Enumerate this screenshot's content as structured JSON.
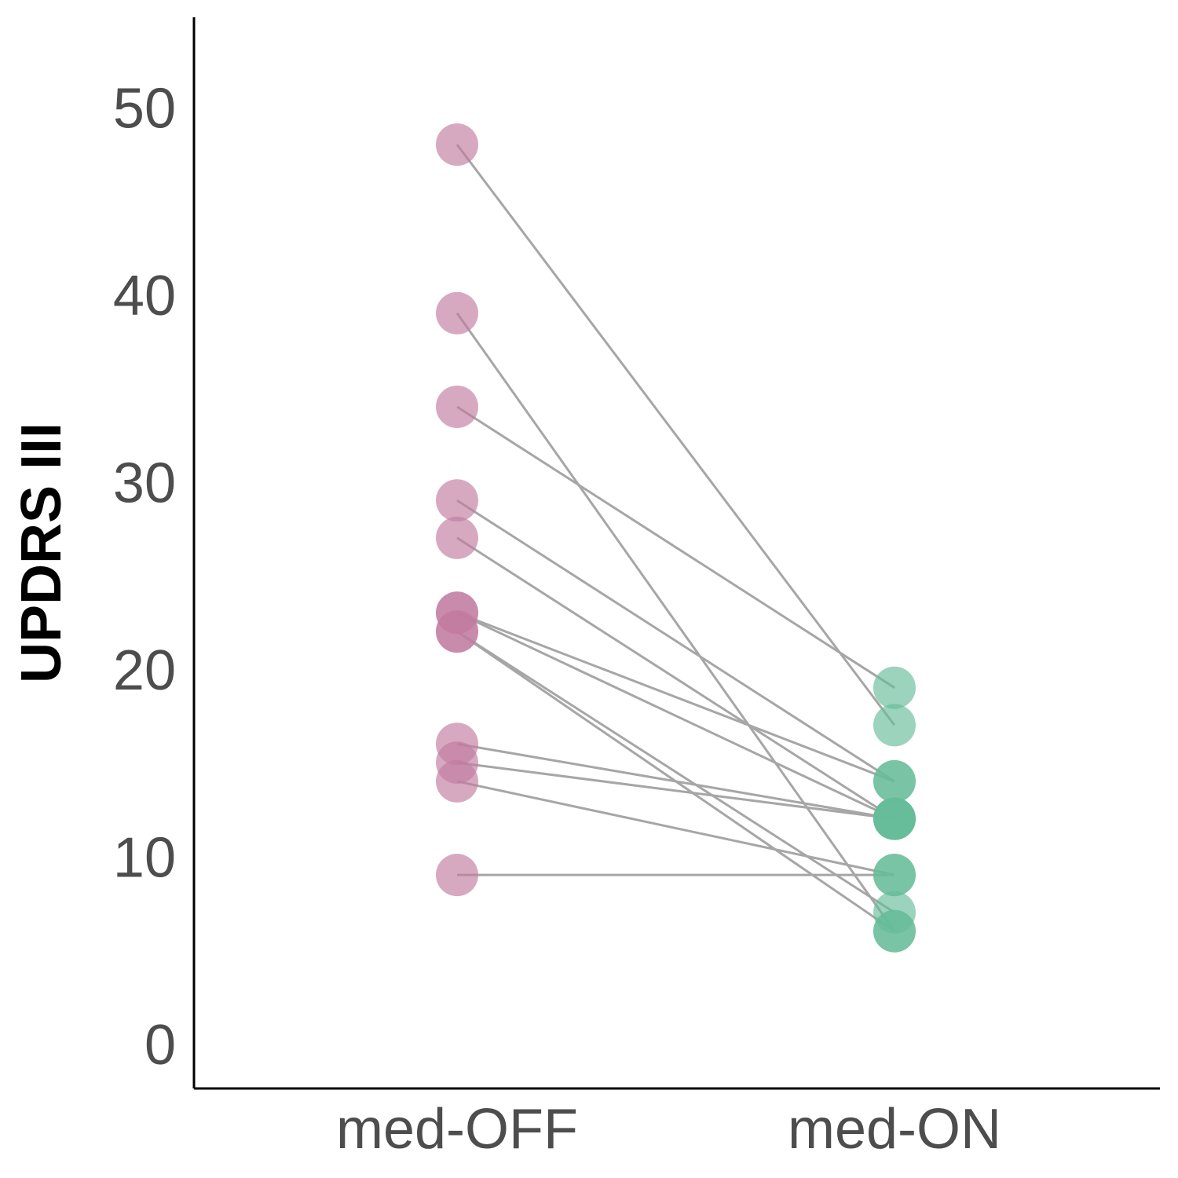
{
  "chart_data": {
    "type": "scatter",
    "subtype": "paired-dot-plot",
    "ylabel": "UPDRS III",
    "xlabel": "",
    "categories": [
      "med-OFF",
      "med-ON"
    ],
    "yticks": [
      0,
      10,
      20,
      30,
      40,
      50
    ],
    "ylim": [
      -2.4,
      54.8
    ],
    "grid": false,
    "legend": "none",
    "colors": {
      "med-OFF": "#c27ba0",
      "med-ON": "#66bb98",
      "connector": "#a6a6a6",
      "axis": "#000000",
      "tick_text": "#4d4d4d"
    },
    "point_alpha": 0.65,
    "pairs": [
      {
        "off": 48,
        "on": 17
      },
      {
        "off": 39,
        "on": 6
      },
      {
        "off": 34,
        "on": 19
      },
      {
        "off": 29,
        "on": 14
      },
      {
        "off": 27,
        "on": 12
      },
      {
        "off": 23,
        "on": 14
      },
      {
        "off": 23,
        "on": 12
      },
      {
        "off": 22,
        "on": 7
      },
      {
        "off": 22,
        "on": 6
      },
      {
        "off": 16,
        "on": 12
      },
      {
        "off": 15,
        "on": 12
      },
      {
        "off": 14,
        "on": 9
      },
      {
        "off": 9,
        "on": 9
      }
    ]
  }
}
